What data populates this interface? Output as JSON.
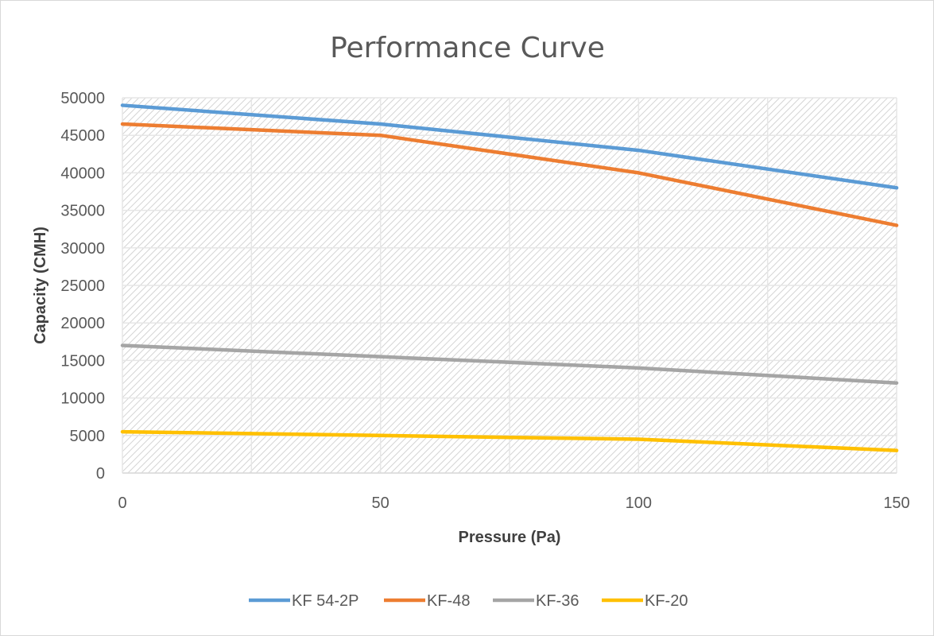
{
  "chart_data": {
    "type": "line",
    "title": "Performance Curve",
    "xlabel": "Pressure (Pa)",
    "ylabel": "Capacity (CMH)",
    "x": [
      0,
      50,
      100,
      150
    ],
    "xlim": [
      0,
      150
    ],
    "ylim": [
      0,
      50000
    ],
    "xticks": [
      0,
      50,
      100,
      150
    ],
    "xtick_labels": [
      "0",
      "50",
      "100",
      "150"
    ],
    "yticks": [
      0,
      5000,
      10000,
      15000,
      20000,
      25000,
      30000,
      35000,
      40000,
      45000,
      50000
    ],
    "ytick_labels": [
      "0",
      "5000",
      "10000",
      "15000",
      "20000",
      "25000",
      "30000",
      "35000",
      "40000",
      "45000",
      "50000"
    ],
    "grid": true,
    "legend_position": "bottom",
    "series": [
      {
        "name": "KF 54-2P",
        "color": "#5b9bd5",
        "values": [
          49000,
          46500,
          43000,
          38000
        ]
      },
      {
        "name": "KF-48",
        "color": "#ed7d31",
        "values": [
          46500,
          45000,
          40000,
          33000
        ]
      },
      {
        "name": "KF-36",
        "color": "#a5a5a5",
        "values": [
          17000,
          15500,
          14000,
          12000
        ]
      },
      {
        "name": "KF-20",
        "color": "#ffc000",
        "values": [
          5500,
          5000,
          4500,
          3000
        ]
      }
    ]
  }
}
